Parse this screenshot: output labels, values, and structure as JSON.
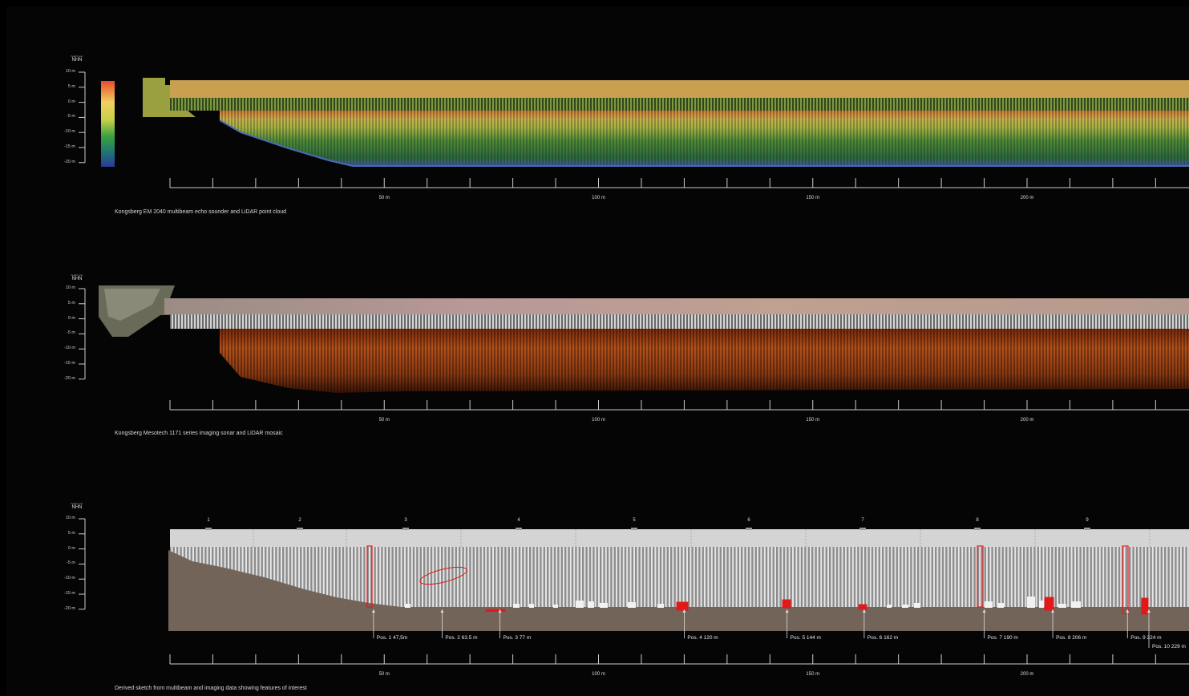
{
  "panels": [
    {
      "id": "multibeam",
      "caption": "Kongsberg EM 2040 multibeam echo sounder and LiDAR point cloud",
      "axis_title": "NHN",
      "axis_title_small": "height over",
      "elevation_ticks": [
        "10 m",
        "5 m",
        "0 m",
        "-5 m",
        "-10 m",
        "-15 m",
        "-20 m"
      ],
      "distance_labels": [
        "50 m",
        "100 m",
        "150 m",
        "200 m"
      ]
    },
    {
      "id": "imaging",
      "caption": "Kongsberg Mesotech 1171 series imaging sonar and LiDAR mosaic",
      "axis_title": "NHN",
      "axis_title_small": "height over",
      "elevation_ticks": [
        "10 m",
        "5 m",
        "0 m",
        "-5 m",
        "-10 m",
        "-15 m",
        "-20 m"
      ],
      "distance_labels": [
        "50 m",
        "100 m",
        "150 m",
        "200 m"
      ]
    },
    {
      "id": "sketch",
      "caption": "Derived sketch from multibeam and imaging data showing features of interest",
      "axis_title": "NHN",
      "axis_title_small": "height over",
      "elevation_ticks": [
        "10 m",
        "5 m",
        "0 m",
        "-5 m",
        "-10 m",
        "-15 m",
        "-20 m"
      ],
      "distance_labels": [
        "50 m",
        "100 m",
        "150 m",
        "200 m"
      ],
      "sections": [
        "1",
        "2",
        "3",
        "4",
        "5",
        "6",
        "7",
        "8",
        "9"
      ],
      "positions": [
        {
          "label": "Pos. 1 47,5m",
          "dist_m": 47.5
        },
        {
          "label": "Pos. 2 63.5 m",
          "dist_m": 63.5
        },
        {
          "label": "Pos. 3 77 m",
          "dist_m": 77
        },
        {
          "label": "Pos. 4 120 m",
          "dist_m": 120
        },
        {
          "label": "Pos. 5 144 m",
          "dist_m": 144
        },
        {
          "label": "Pos. 6 162 m",
          "dist_m": 162
        },
        {
          "label": "Pos. 7 190 m",
          "dist_m": 190
        },
        {
          "label": "Pos. 8 206 m",
          "dist_m": 206
        },
        {
          "label": "Pos. 9 224 m",
          "dist_m": 224
        },
        {
          "label": "Pos. 10 229 m",
          "dist_m": 229
        }
      ]
    }
  ],
  "colors": {
    "background": "#000000",
    "colorbar_top": "#e84a2c",
    "colorbar_bottom": "#2a3a9a",
    "feature_red": "#e01a1a",
    "seabed": "#726458",
    "sky": "#d4d4d4"
  }
}
